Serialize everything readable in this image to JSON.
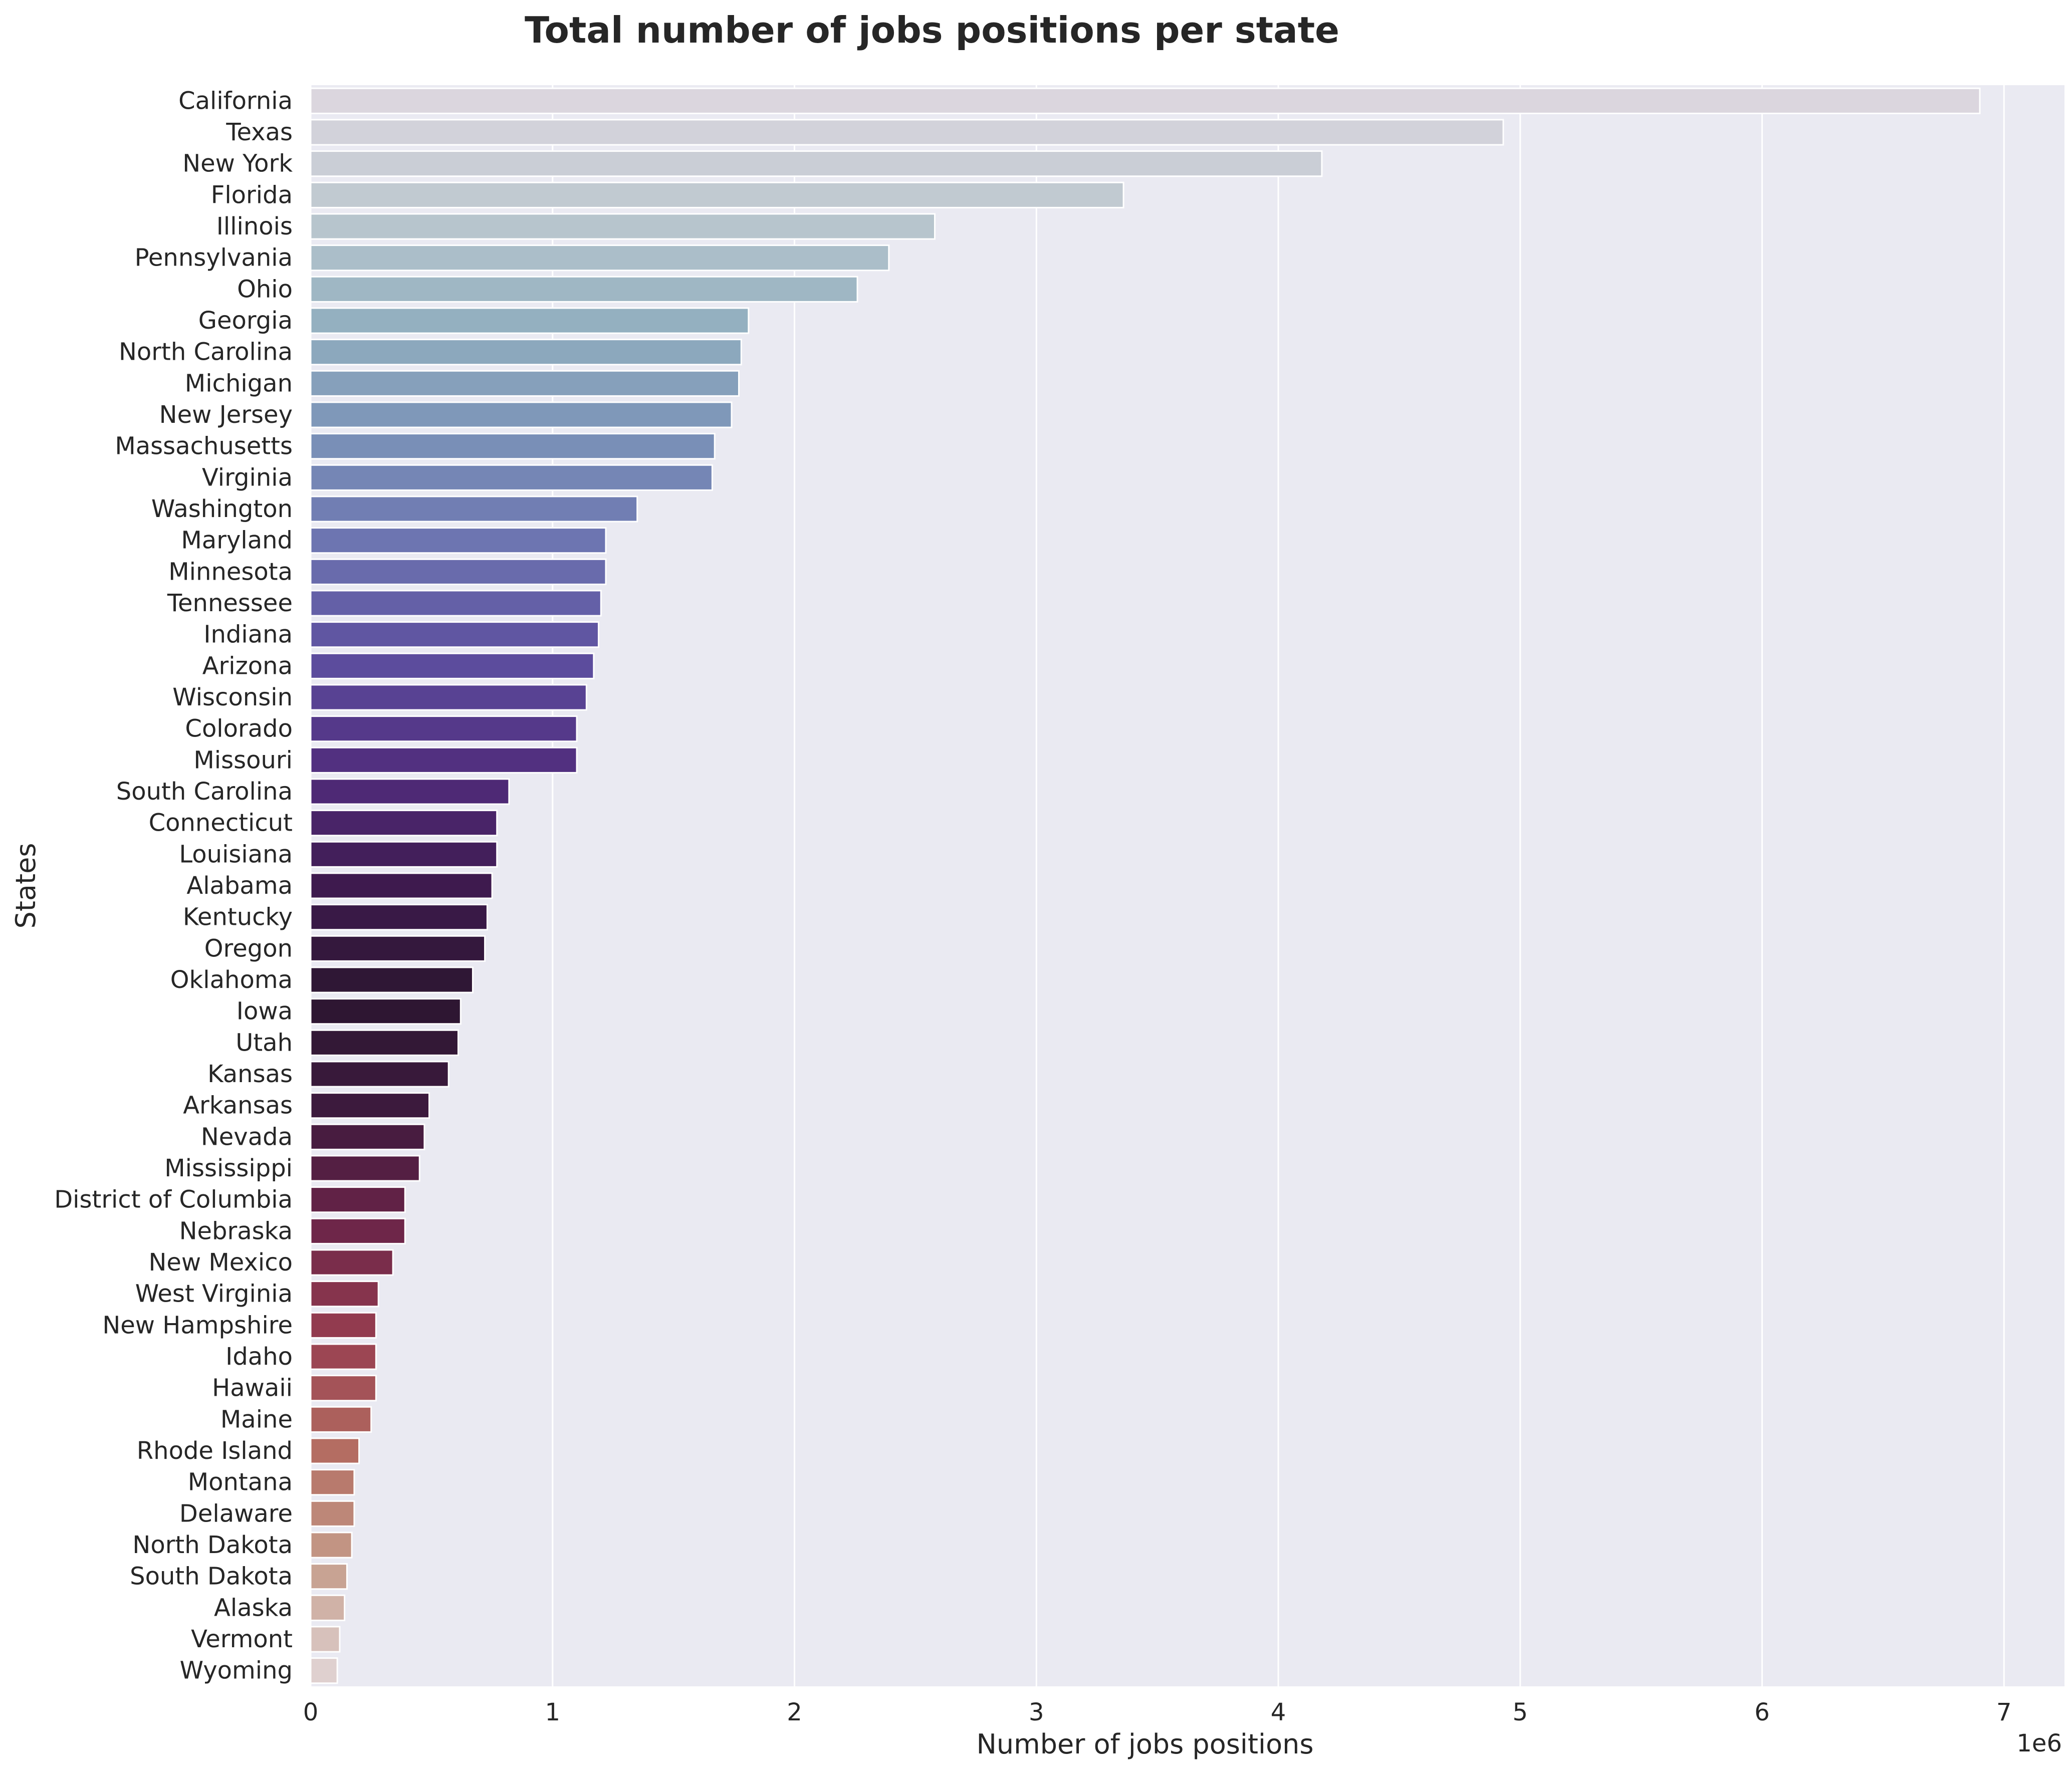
{
  "chart_data": {
    "type": "bar",
    "orientation": "horizontal",
    "title": "Total number of jobs positions per state",
    "xlabel": "Number of jobs positions",
    "ylabel": "States",
    "x_offset_label": "1e6",
    "x_scale": 1000000,
    "xlim": [
      0,
      7.25
    ],
    "x_ticks": [
      0,
      1,
      2,
      3,
      4,
      5,
      6,
      7
    ],
    "x_tick_labels": [
      "0",
      "1",
      "2",
      "3",
      "4",
      "5",
      "6",
      "7"
    ],
    "grid": true,
    "legend": "none",
    "categories": [
      "California",
      "Texas",
      "New York",
      "Florida",
      "Illinois",
      "Pennsylvania",
      "Ohio",
      "Georgia",
      "North Carolina",
      "Michigan",
      "New Jersey",
      "Massachusetts",
      "Virginia",
      "Washington",
      "Maryland",
      "Minnesota",
      "Tennessee",
      "Indiana",
      "Arizona",
      "Wisconsin",
      "Colorado",
      "Missouri",
      "South Carolina",
      "Connecticut",
      "Louisiana",
      "Alabama",
      "Kentucky",
      "Oregon",
      "Oklahoma",
      "Iowa",
      "Utah",
      "Kansas",
      "Arkansas",
      "Nevada",
      "Mississippi",
      "District of Columbia",
      "Nebraska",
      "New Mexico",
      "West Virginia",
      "New Hampshire",
      "Idaho",
      "Hawaii",
      "Maine",
      "Rhode Island",
      "Montana",
      "Delaware",
      "North Dakota",
      "South Dakota",
      "Alaska",
      "Vermont",
      "Wyoming"
    ],
    "values": [
      6.9,
      4.93,
      4.18,
      3.36,
      2.58,
      2.39,
      2.26,
      1.81,
      1.78,
      1.77,
      1.74,
      1.67,
      1.66,
      1.35,
      1.22,
      1.22,
      1.2,
      1.19,
      1.17,
      1.14,
      1.1,
      1.1,
      0.82,
      0.77,
      0.77,
      0.75,
      0.73,
      0.72,
      0.67,
      0.62,
      0.61,
      0.57,
      0.49,
      0.47,
      0.45,
      0.39,
      0.39,
      0.34,
      0.28,
      0.27,
      0.27,
      0.27,
      0.25,
      0.2,
      0.18,
      0.18,
      0.17,
      0.15,
      0.14,
      0.12,
      0.11
    ],
    "colors": {
      "plot_background": "#eaeaf2",
      "grid": "#ffffff",
      "text": "#262626",
      "palette_stops": [
        "#dbd6de",
        "#bcc8cf",
        "#92afbf",
        "#7a92b8",
        "#6c72b0",
        "#5c4d9e",
        "#512c7c",
        "#3e1a4e",
        "#2c1630",
        "#3d1a3e",
        "#6a2448",
        "#963d50",
        "#b36b60",
        "#c49a88",
        "#dfd0cf"
      ]
    }
  }
}
